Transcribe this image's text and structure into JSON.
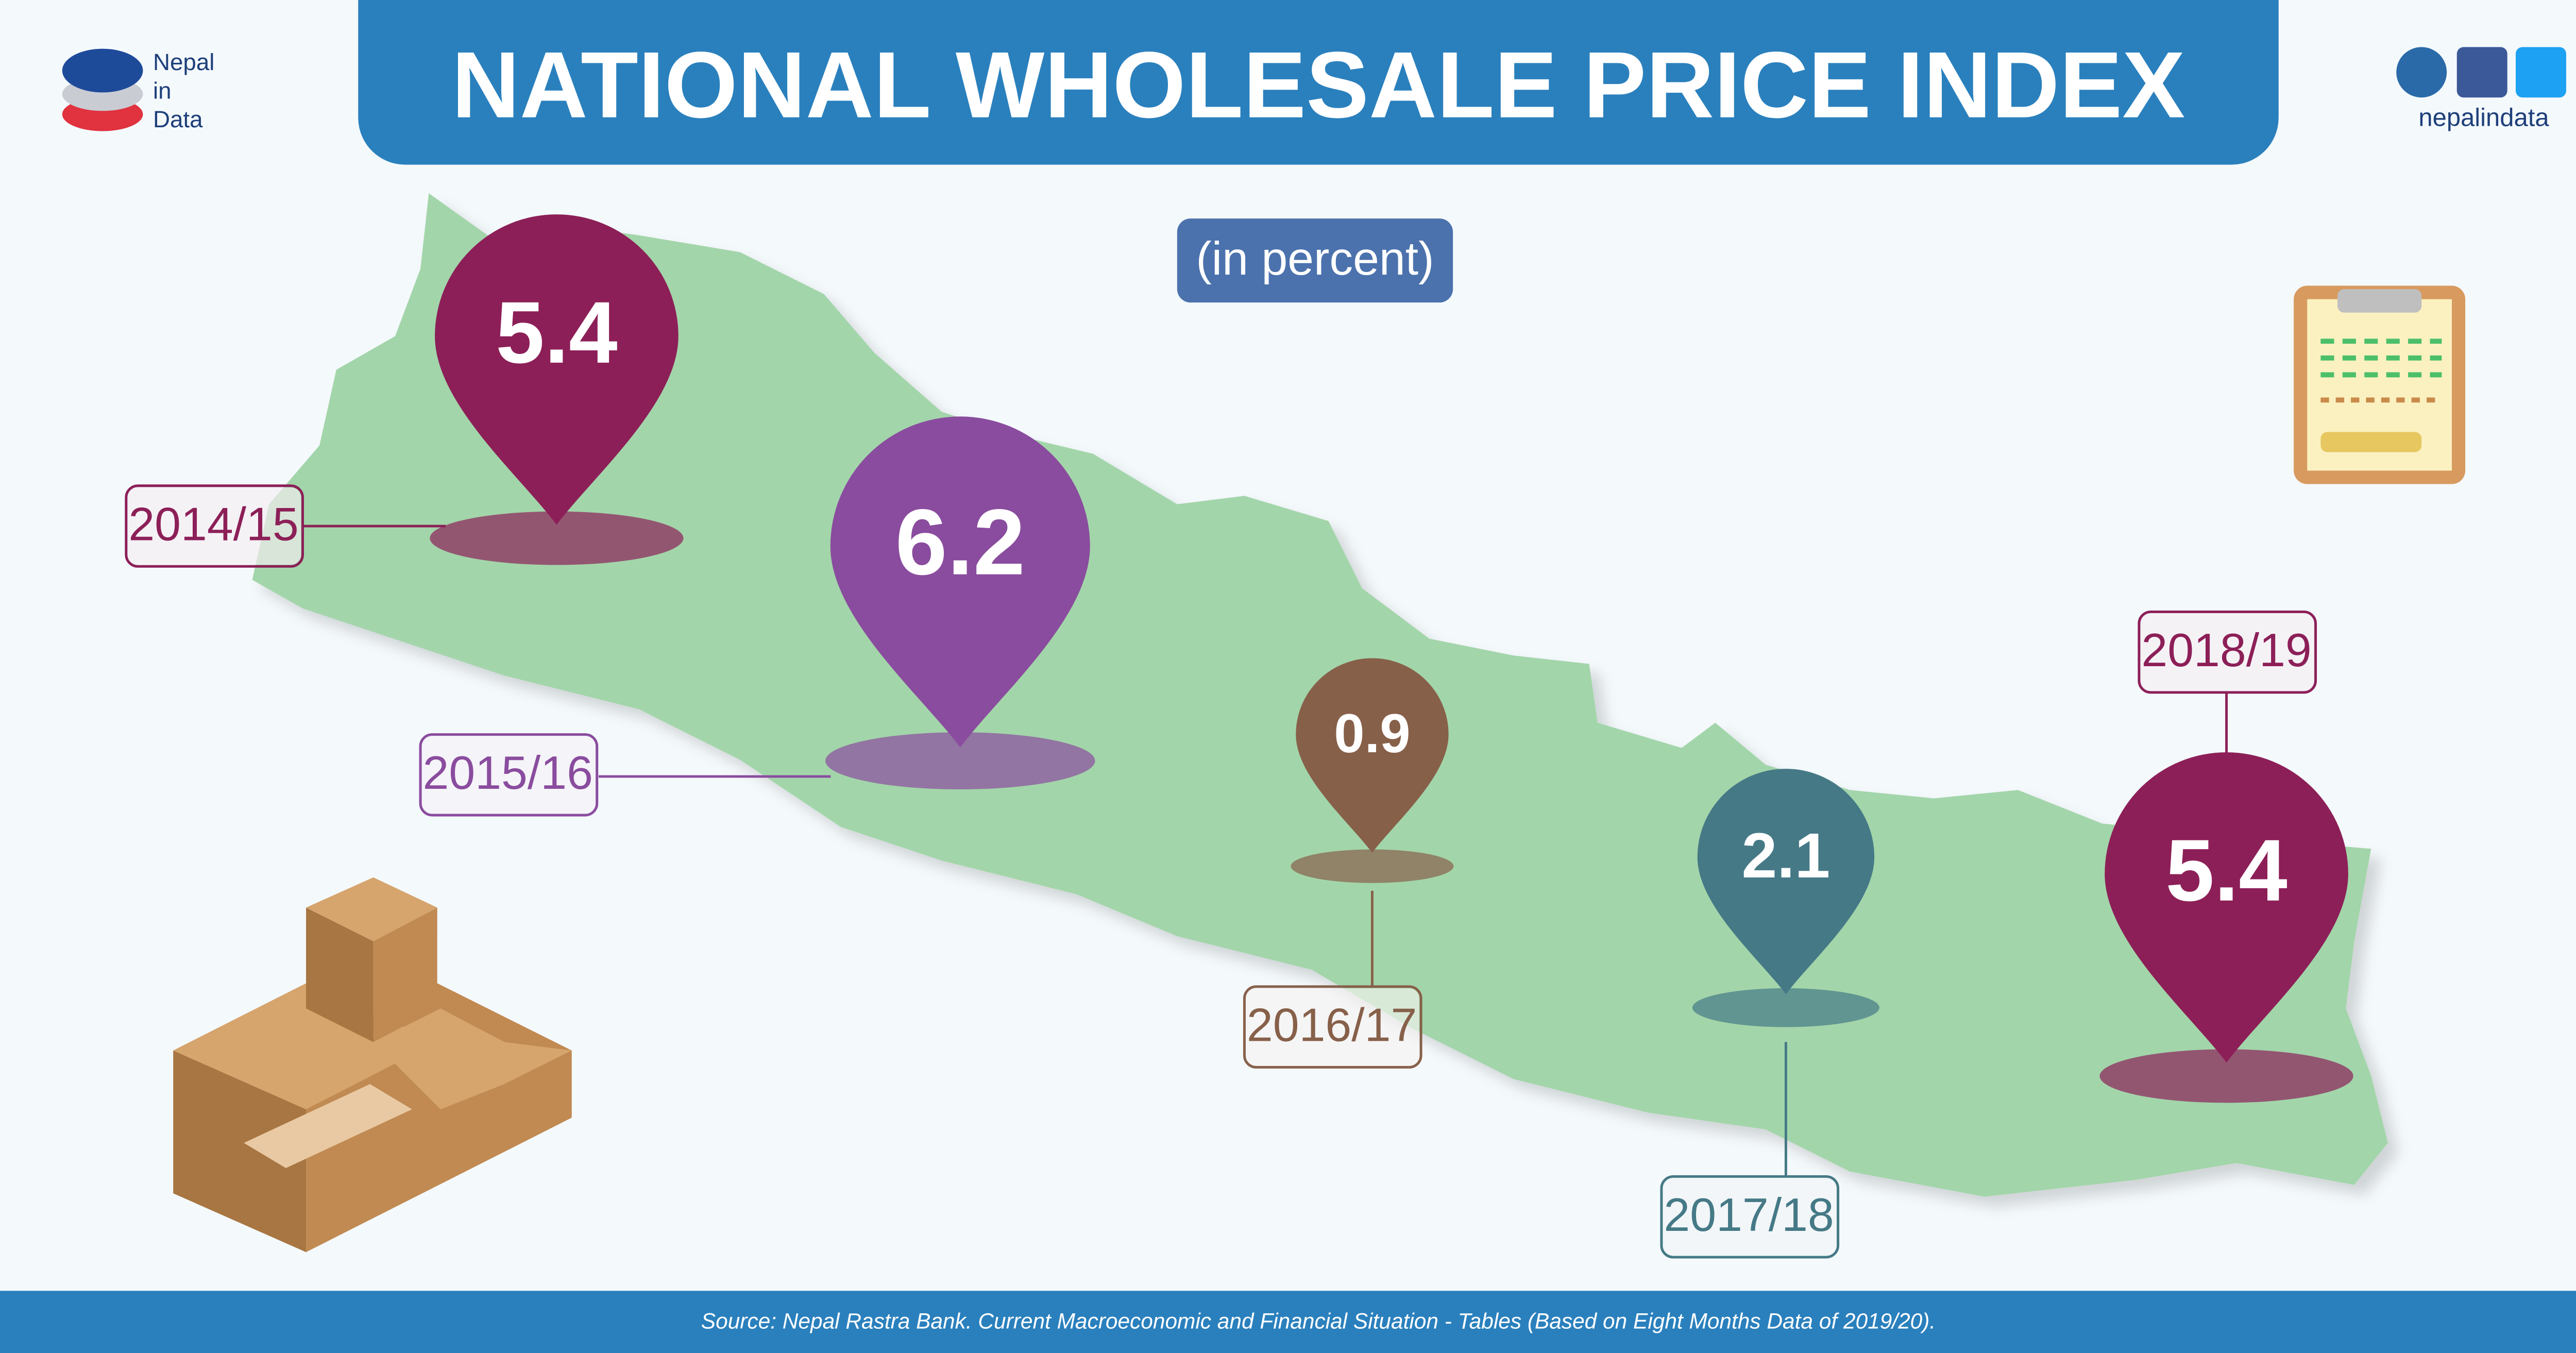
{
  "logo": [
    "Nepal",
    "in",
    "Data"
  ],
  "handle": "nepalindata",
  "chart_data": {
    "type": "pin",
    "title": "NATIONAL WHOLESALE PRICE INDEX",
    "subtitle": "(in percent)",
    "source": "Source: Nepal Rastra Bank. Current Macroeconomic and Financial Situation - Tables (Based on Eight Months Data of 2019/20).",
    "categories": [
      "2014/15",
      "2015/16",
      "2016/17",
      "2017/18",
      "2018/19"
    ],
    "values": [
      5.4,
      6.2,
      0.9,
      2.1,
      5.4
    ],
    "colors": [
      "#8c1f58",
      "#8a4c9e",
      "#87604a",
      "#457986",
      "#8c1f58"
    ]
  }
}
